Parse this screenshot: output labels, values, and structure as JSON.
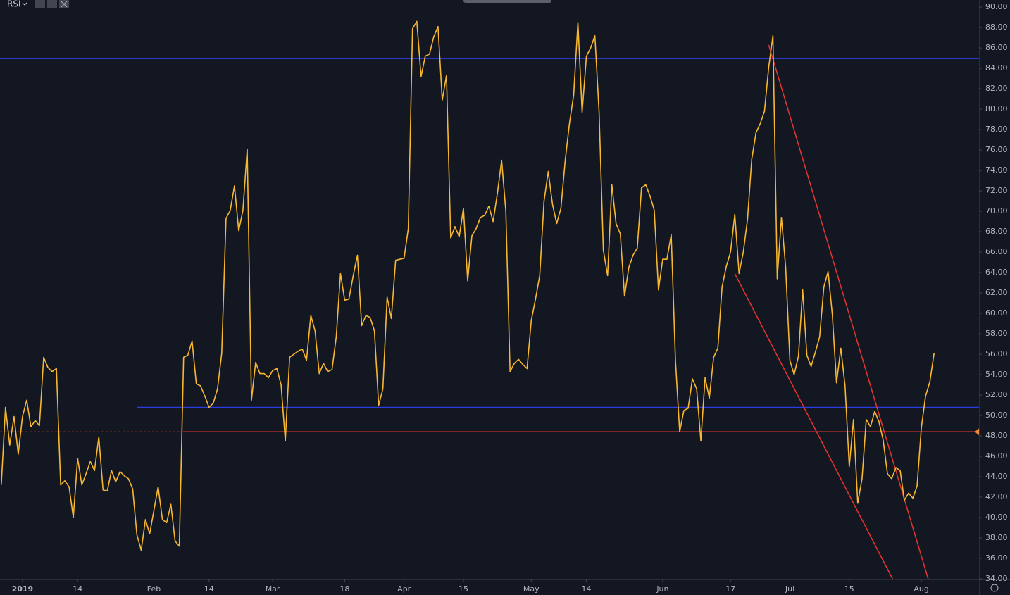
{
  "chart_data": {
    "type": "line",
    "title": "RSI",
    "color": "#f7b731",
    "xlim": [
      -5.3,
      225.6
    ],
    "ylim": [
      34,
      90.7
    ],
    "grid": false,
    "xticks": [
      {
        "value": 0,
        "label": "2019"
      },
      {
        "value": 13,
        "label": "14"
      },
      {
        "value": 31,
        "label": "Feb"
      },
      {
        "value": 44,
        "label": "14"
      },
      {
        "value": 59,
        "label": "Mar"
      },
      {
        "value": 76,
        "label": "18"
      },
      {
        "value": 90,
        "label": "Apr"
      },
      {
        "value": 104,
        "label": "15"
      },
      {
        "value": 120,
        "label": "May"
      },
      {
        "value": 133,
        "label": "14"
      },
      {
        "value": 151,
        "label": "Jun"
      },
      {
        "value": 167,
        "label": "17"
      },
      {
        "value": 181,
        "label": "Jul"
      },
      {
        "value": 195,
        "label": "15"
      },
      {
        "value": 212,
        "label": "Aug"
      }
    ],
    "yticks": [
      {
        "value": 34,
        "label": "34.00"
      },
      {
        "value": 36,
        "label": "36.00"
      },
      {
        "value": 38,
        "label": "38.00"
      },
      {
        "value": 40,
        "label": "40.00"
      },
      {
        "value": 42,
        "label": "42.00"
      },
      {
        "value": 44,
        "label": "44.00"
      },
      {
        "value": 46,
        "label": "46.00"
      },
      {
        "value": 48,
        "label": "48.00"
      },
      {
        "value": 50,
        "label": "50.00"
      },
      {
        "value": 52,
        "label": "52.00"
      },
      {
        "value": 54,
        "label": "54.00"
      },
      {
        "value": 56,
        "label": "56.00"
      },
      {
        "value": 58,
        "label": "58.00"
      },
      {
        "value": 60,
        "label": "60.00"
      },
      {
        "value": 62,
        "label": "62.00"
      },
      {
        "value": 64,
        "label": "64.00"
      },
      {
        "value": 66,
        "label": "66.00"
      },
      {
        "value": 68,
        "label": "68.00"
      },
      {
        "value": 70,
        "label": "70.00"
      },
      {
        "value": 72,
        "label": "72.00"
      },
      {
        "value": 74,
        "label": "74.00"
      },
      {
        "value": 76,
        "label": "76.00"
      },
      {
        "value": 78,
        "label": "78.00"
      },
      {
        "value": 80,
        "label": "80.00"
      },
      {
        "value": 82,
        "label": "82.00"
      },
      {
        "value": 84,
        "label": "84.00"
      },
      {
        "value": 86,
        "label": "86.00"
      },
      {
        "value": 88,
        "label": "88.00"
      },
      {
        "value": 90,
        "label": "90.00"
      }
    ],
    "x": [
      -5,
      -4,
      -3,
      -2,
      -1,
      0,
      1,
      2,
      3,
      4,
      5,
      6,
      7,
      8,
      9,
      10,
      11,
      12,
      13,
      14,
      15,
      16,
      17,
      18,
      19,
      20,
      21,
      22,
      23,
      24,
      25,
      26,
      27,
      28,
      29,
      30,
      31,
      32,
      33,
      34,
      35,
      36,
      37,
      38,
      39,
      40,
      41,
      42,
      43,
      44,
      45,
      46,
      47,
      48,
      49,
      50,
      51,
      52,
      53,
      54,
      55,
      56,
      57,
      58,
      59,
      60,
      61,
      62,
      63,
      64,
      65,
      66,
      67,
      68,
      69,
      70,
      71,
      72,
      73,
      74,
      75,
      76,
      77,
      78,
      79,
      80,
      81,
      82,
      83,
      84,
      85,
      86,
      87,
      88,
      89,
      90,
      91,
      92,
      93,
      94,
      95,
      96,
      97,
      98,
      99,
      100,
      101,
      102,
      103,
      104,
      105,
      106,
      107,
      108,
      109,
      110,
      111,
      112,
      113,
      114,
      115,
      116,
      117,
      118,
      119,
      120,
      121,
      122,
      123,
      124,
      125,
      126,
      127,
      128,
      129,
      130,
      131,
      132,
      133,
      134,
      135,
      136,
      137,
      138,
      139,
      140,
      141,
      142,
      143,
      144,
      145,
      146,
      147,
      148,
      149,
      150,
      151,
      152,
      153,
      154,
      155,
      156,
      157,
      158,
      159,
      160,
      161,
      162,
      163,
      164,
      165,
      166,
      167,
      168,
      169,
      170,
      171,
      172,
      173,
      174,
      175,
      176,
      177,
      178,
      179,
      180,
      181,
      182,
      183,
      184,
      185,
      186,
      187,
      188,
      189,
      190,
      191,
      192,
      193,
      194,
      195,
      196,
      197,
      198,
      199,
      200,
      201,
      202,
      203,
      204,
      205,
      206,
      207,
      208,
      209,
      210,
      211,
      212,
      213,
      214,
      215
    ],
    "values": [
      43.2,
      50.8,
      47.1,
      49.9,
      46.2,
      49.9,
      51.5,
      48.9,
      49.5,
      49.0,
      55.7,
      54.7,
      54.3,
      54.6,
      43.2,
      43.6,
      43.0,
      40.0,
      45.8,
      43.2,
      44.3,
      45.5,
      44.6,
      47.9,
      42.7,
      42.6,
      44.6,
      43.5,
      44.5,
      44.1,
      43.8,
      42.8,
      38.3,
      36.8,
      39.8,
      38.4,
      40.7,
      43.0,
      39.8,
      39.5,
      41.3,
      37.7,
      37.2,
      55.7,
      55.9,
      57.3,
      53.1,
      52.9,
      51.9,
      50.8,
      51.2,
      52.6,
      56.1,
      69.3,
      70.1,
      72.5,
      68.1,
      70.1,
      76.1,
      51.5,
      55.2,
      54.1,
      54.1,
      53.7,
      54.4,
      54.6,
      53.0,
      47.5,
      55.7,
      56.0,
      56.3,
      56.5,
      55.4,
      59.8,
      58.3,
      54.1,
      55.1,
      54.3,
      54.5,
      57.7,
      63.9,
      61.3,
      61.4,
      63.7,
      65.7,
      58.8,
      59.8,
      59.6,
      58.3,
      51.0,
      52.6,
      61.6,
      59.5,
      65.2,
      65.3,
      65.4,
      68.3,
      87.9,
      88.6,
      83.2,
      85.2,
      85.4,
      87.1,
      88.1,
      80.9,
      83.3,
      67.4,
      68.5,
      67.5,
      70.3,
      63.2,
      67.6,
      68.3,
      69.4,
      69.6,
      70.5,
      69.0,
      71.7,
      75.0,
      70.0,
      54.3,
      55.1,
      55.5,
      55.0,
      54.6,
      59.3,
      61.4,
      63.7,
      71.0,
      73.9,
      70.7,
      68.8,
      70.3,
      75.0,
      78.6,
      81.4,
      88.5,
      79.7,
      85.2,
      86.0,
      87.2,
      79.7,
      66.2,
      63.7,
      72.6,
      68.8,
      67.8,
      61.7,
      64.5,
      65.7,
      66.4,
      72.3,
      72.6,
      71.5,
      70.1,
      62.3,
      65.3,
      65.3,
      67.7,
      55.4,
      48.4,
      50.5,
      50.7,
      53.6,
      52.6,
      47.5,
      53.7,
      51.7,
      55.7,
      56.6,
      62.6,
      64.6,
      66.0,
      69.7,
      63.9,
      66.0,
      69.2,
      75.1,
      77.7,
      78.6,
      79.8,
      84.1,
      87.2,
      63.4,
      69.4,
      64.5,
      55.4,
      54.0,
      55.8,
      62.3,
      55.9,
      54.8,
      56.2,
      57.7,
      62.6,
      64.1,
      59.9,
      53.2,
      56.6,
      52.9,
      45.0,
      49.6,
      41.4,
      43.8,
      49.6,
      48.9,
      50.4,
      49.4,
      47.6,
      44.3,
      43.8,
      44.9,
      44.6,
      41.7,
      42.4,
      41.9,
      43.1,
      48.8,
      51.9,
      53.3,
      56.1
    ],
    "levels": [
      {
        "value": 84.97,
        "color": "#2b3de0",
        "from": -5.3
      },
      {
        "value": 50.8,
        "color": "#2b3de0",
        "from": 27
      },
      {
        "value": 48.4,
        "color": "#e8342f",
        "from": 38
      }
    ],
    "trendlines": [
      {
        "x": [
          176,
          213.6
        ],
        "y": [
          86.3,
          34
        ],
        "color": "#e8342f"
      },
      {
        "x": [
          168,
          205.2
        ],
        "y": [
          63.9,
          34
        ],
        "color": "#e8342f"
      }
    ]
  }
}
